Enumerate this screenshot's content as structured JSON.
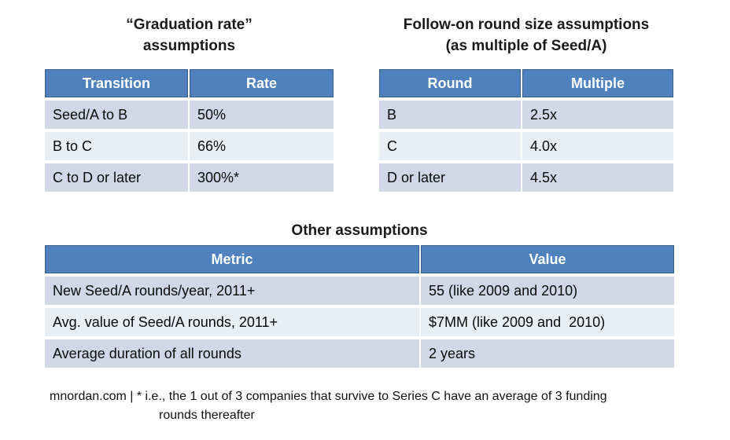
{
  "colors": {
    "header_bg": "#4f81bd",
    "header_border": "#3a5f8b",
    "header_text": "#ffffff",
    "row_odd_bg": "#d0d8e8",
    "row_even_bg": "#e9edf4"
  },
  "tables": {
    "graduation": {
      "title_line1": "“Graduation rate”",
      "title_line2": "assumptions",
      "columns": [
        "Transition",
        "Rate"
      ],
      "rows": [
        [
          "Seed/A to B",
          "50%"
        ],
        [
          "B to C",
          "66%"
        ],
        [
          "C to D or later",
          "300%*"
        ]
      ]
    },
    "follow_on": {
      "title_line1": "Follow-on round size assumptions",
      "title_line2": "(as multiple of Seed/A)",
      "columns": [
        "Round",
        "Multiple"
      ],
      "rows": [
        [
          "B",
          "2.5x"
        ],
        [
          "C",
          "4.0x"
        ],
        [
          "D or later",
          "4.5x"
        ]
      ]
    },
    "other": {
      "title": "Other assumptions",
      "columns": [
        "Metric",
        "Value"
      ],
      "rows": [
        [
          "New Seed/A rounds/year, 2011+",
          "55 (like 2009 and 2010)"
        ],
        [
          "Avg. value of Seed/A rounds, 2011+",
          "$7MM (like 2009 and  2010)"
        ],
        [
          "Average duration of all rounds",
          "2 years"
        ]
      ]
    }
  },
  "footer": {
    "line1": "mnordan.com | * i.e., the 1 out of 3 companies that survive to Series C have an average of 3 funding",
    "line2": "rounds thereafter"
  }
}
